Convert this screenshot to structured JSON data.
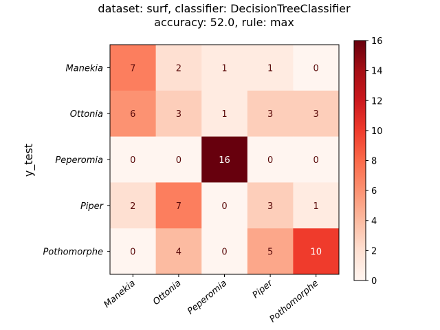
{
  "chart_data": {
    "type": "heatmap",
    "title_lines": [
      "dataset: surf, classifier: DecisionTreeClassifier",
      "accuracy: 52.0, rule: max"
    ],
    "ylabel": "y_test",
    "xlabel": "",
    "row_labels": [
      "Manekia",
      "Ottonia",
      "Peperomia",
      "Piper",
      "Pothomorphe"
    ],
    "col_labels": [
      "Manekia",
      "Ottonia",
      "Peperomia",
      "Piper",
      "Pothomorphe"
    ],
    "values": [
      [
        7,
        2,
        1,
        1,
        0
      ],
      [
        6,
        3,
        1,
        3,
        3
      ],
      [
        0,
        0,
        16,
        0,
        0
      ],
      [
        2,
        7,
        0,
        3,
        1
      ],
      [
        0,
        4,
        0,
        5,
        10
      ]
    ],
    "colormap": "Reds",
    "colorbar": {
      "min": 0,
      "max": 16,
      "ticks": [
        0,
        2,
        4,
        6,
        8,
        10,
        12,
        14,
        16
      ]
    }
  }
}
